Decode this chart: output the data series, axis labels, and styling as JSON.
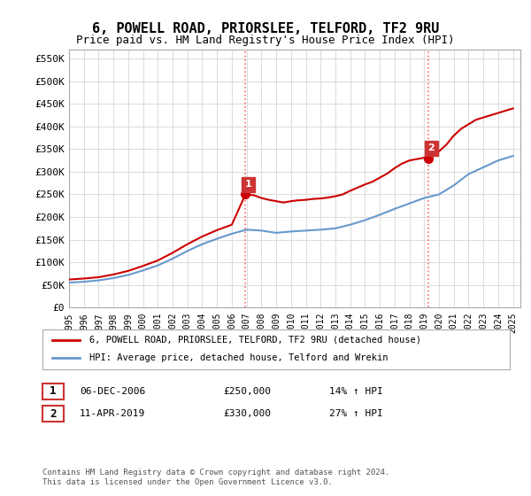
{
  "title": "6, POWELL ROAD, PRIORSLEE, TELFORD, TF2 9RU",
  "subtitle": "Price paid vs. HM Land Registry's House Price Index (HPI)",
  "title_fontsize": 11,
  "subtitle_fontsize": 9,
  "ylabel_ticks": [
    "£0",
    "£50K",
    "£100K",
    "£150K",
    "£200K",
    "£250K",
    "£300K",
    "£350K",
    "£400K",
    "£450K",
    "£500K",
    "£550K"
  ],
  "ytick_values": [
    0,
    50000,
    100000,
    150000,
    200000,
    250000,
    300000,
    350000,
    400000,
    450000,
    500000,
    550000
  ],
  "ylim": [
    0,
    570000
  ],
  "xlim_start": 1995.0,
  "xlim_end": 2025.5,
  "xtick_years": [
    1995,
    1996,
    1997,
    1998,
    1999,
    2000,
    2001,
    2002,
    2003,
    2004,
    2005,
    2006,
    2007,
    2008,
    2009,
    2010,
    2011,
    2012,
    2013,
    2014,
    2015,
    2016,
    2017,
    2018,
    2019,
    2020,
    2021,
    2022,
    2023,
    2024,
    2025
  ],
  "sale1_x": 2006.92,
  "sale1_y": 250000,
  "sale2_x": 2019.28,
  "sale2_y": 330000,
  "vline1_x": 2006.92,
  "vline2_x": 2019.28,
  "vline_color": "#ff6666",
  "vline_style": ":",
  "red_line_color": "#cc0000",
  "blue_line_color": "#6699cc",
  "annotation_box_color": "#cc3333",
  "legend_label_red": "6, POWELL ROAD, PRIORSLEE, TELFORD, TF2 9RU (detached house)",
  "legend_label_blue": "HPI: Average price, detached house, Telford and Wrekin",
  "table_row1": [
    "1",
    "06-DEC-2006",
    "£250,000",
    "14% ↑ HPI"
  ],
  "table_row2": [
    "2",
    "11-APR-2019",
    "£330,000",
    "27% ↑ HPI"
  ],
  "footer": "Contains HM Land Registry data © Crown copyright and database right 2024.\nThis data is licensed under the Open Government Licence v3.0.",
  "bg_color": "#ffffff",
  "grid_color": "#dddddd",
  "hpi_base_years": [
    1995,
    1996,
    1997,
    1998,
    1999,
    2000,
    2001,
    2002,
    2003,
    2004,
    2005,
    2006,
    2007,
    2008,
    2009,
    2010,
    2011,
    2012,
    2013,
    2014,
    2015,
    2016,
    2017,
    2018,
    2019,
    2020,
    2021,
    2022,
    2023,
    2024,
    2025
  ],
  "hpi_values": [
    55000,
    57000,
    60000,
    65000,
    72000,
    82000,
    93000,
    108000,
    125000,
    140000,
    152000,
    163000,
    172000,
    170000,
    165000,
    168000,
    170000,
    172000,
    175000,
    183000,
    193000,
    205000,
    218000,
    230000,
    242000,
    250000,
    270000,
    295000,
    310000,
    325000,
    335000
  ],
  "red_values_x": [
    1995.0,
    1996.0,
    1997.0,
    1998.0,
    1999.0,
    2000.0,
    2001.0,
    2002.0,
    2003.0,
    2004.0,
    2005.0,
    2006.0,
    2006.92,
    2007.5,
    2008.0,
    2008.5,
    2009.0,
    2009.5,
    2010.0,
    2010.5,
    2011.0,
    2011.5,
    2012.0,
    2012.5,
    2013.0,
    2013.5,
    2014.0,
    2014.5,
    2015.0,
    2015.5,
    2016.0,
    2016.5,
    2017.0,
    2017.5,
    2018.0,
    2018.5,
    2019.0,
    2019.28,
    2019.5,
    2020.0,
    2020.5,
    2021.0,
    2021.5,
    2022.0,
    2022.5,
    2023.0,
    2023.5,
    2024.0,
    2024.5,
    2025.0
  ],
  "red_values_y": [
    62000,
    64000,
    67000,
    73000,
    81000,
    92000,
    104000,
    121000,
    140000,
    157000,
    171000,
    183000,
    250000,
    248000,
    242000,
    238000,
    235000,
    232000,
    235000,
    237000,
    238000,
    240000,
    241000,
    243000,
    246000,
    250000,
    258000,
    265000,
    272000,
    278000,
    287000,
    296000,
    308000,
    318000,
    325000,
    328000,
    331000,
    330000,
    335000,
    345000,
    360000,
    380000,
    395000,
    405000,
    415000,
    420000,
    425000,
    430000,
    435000,
    440000
  ]
}
